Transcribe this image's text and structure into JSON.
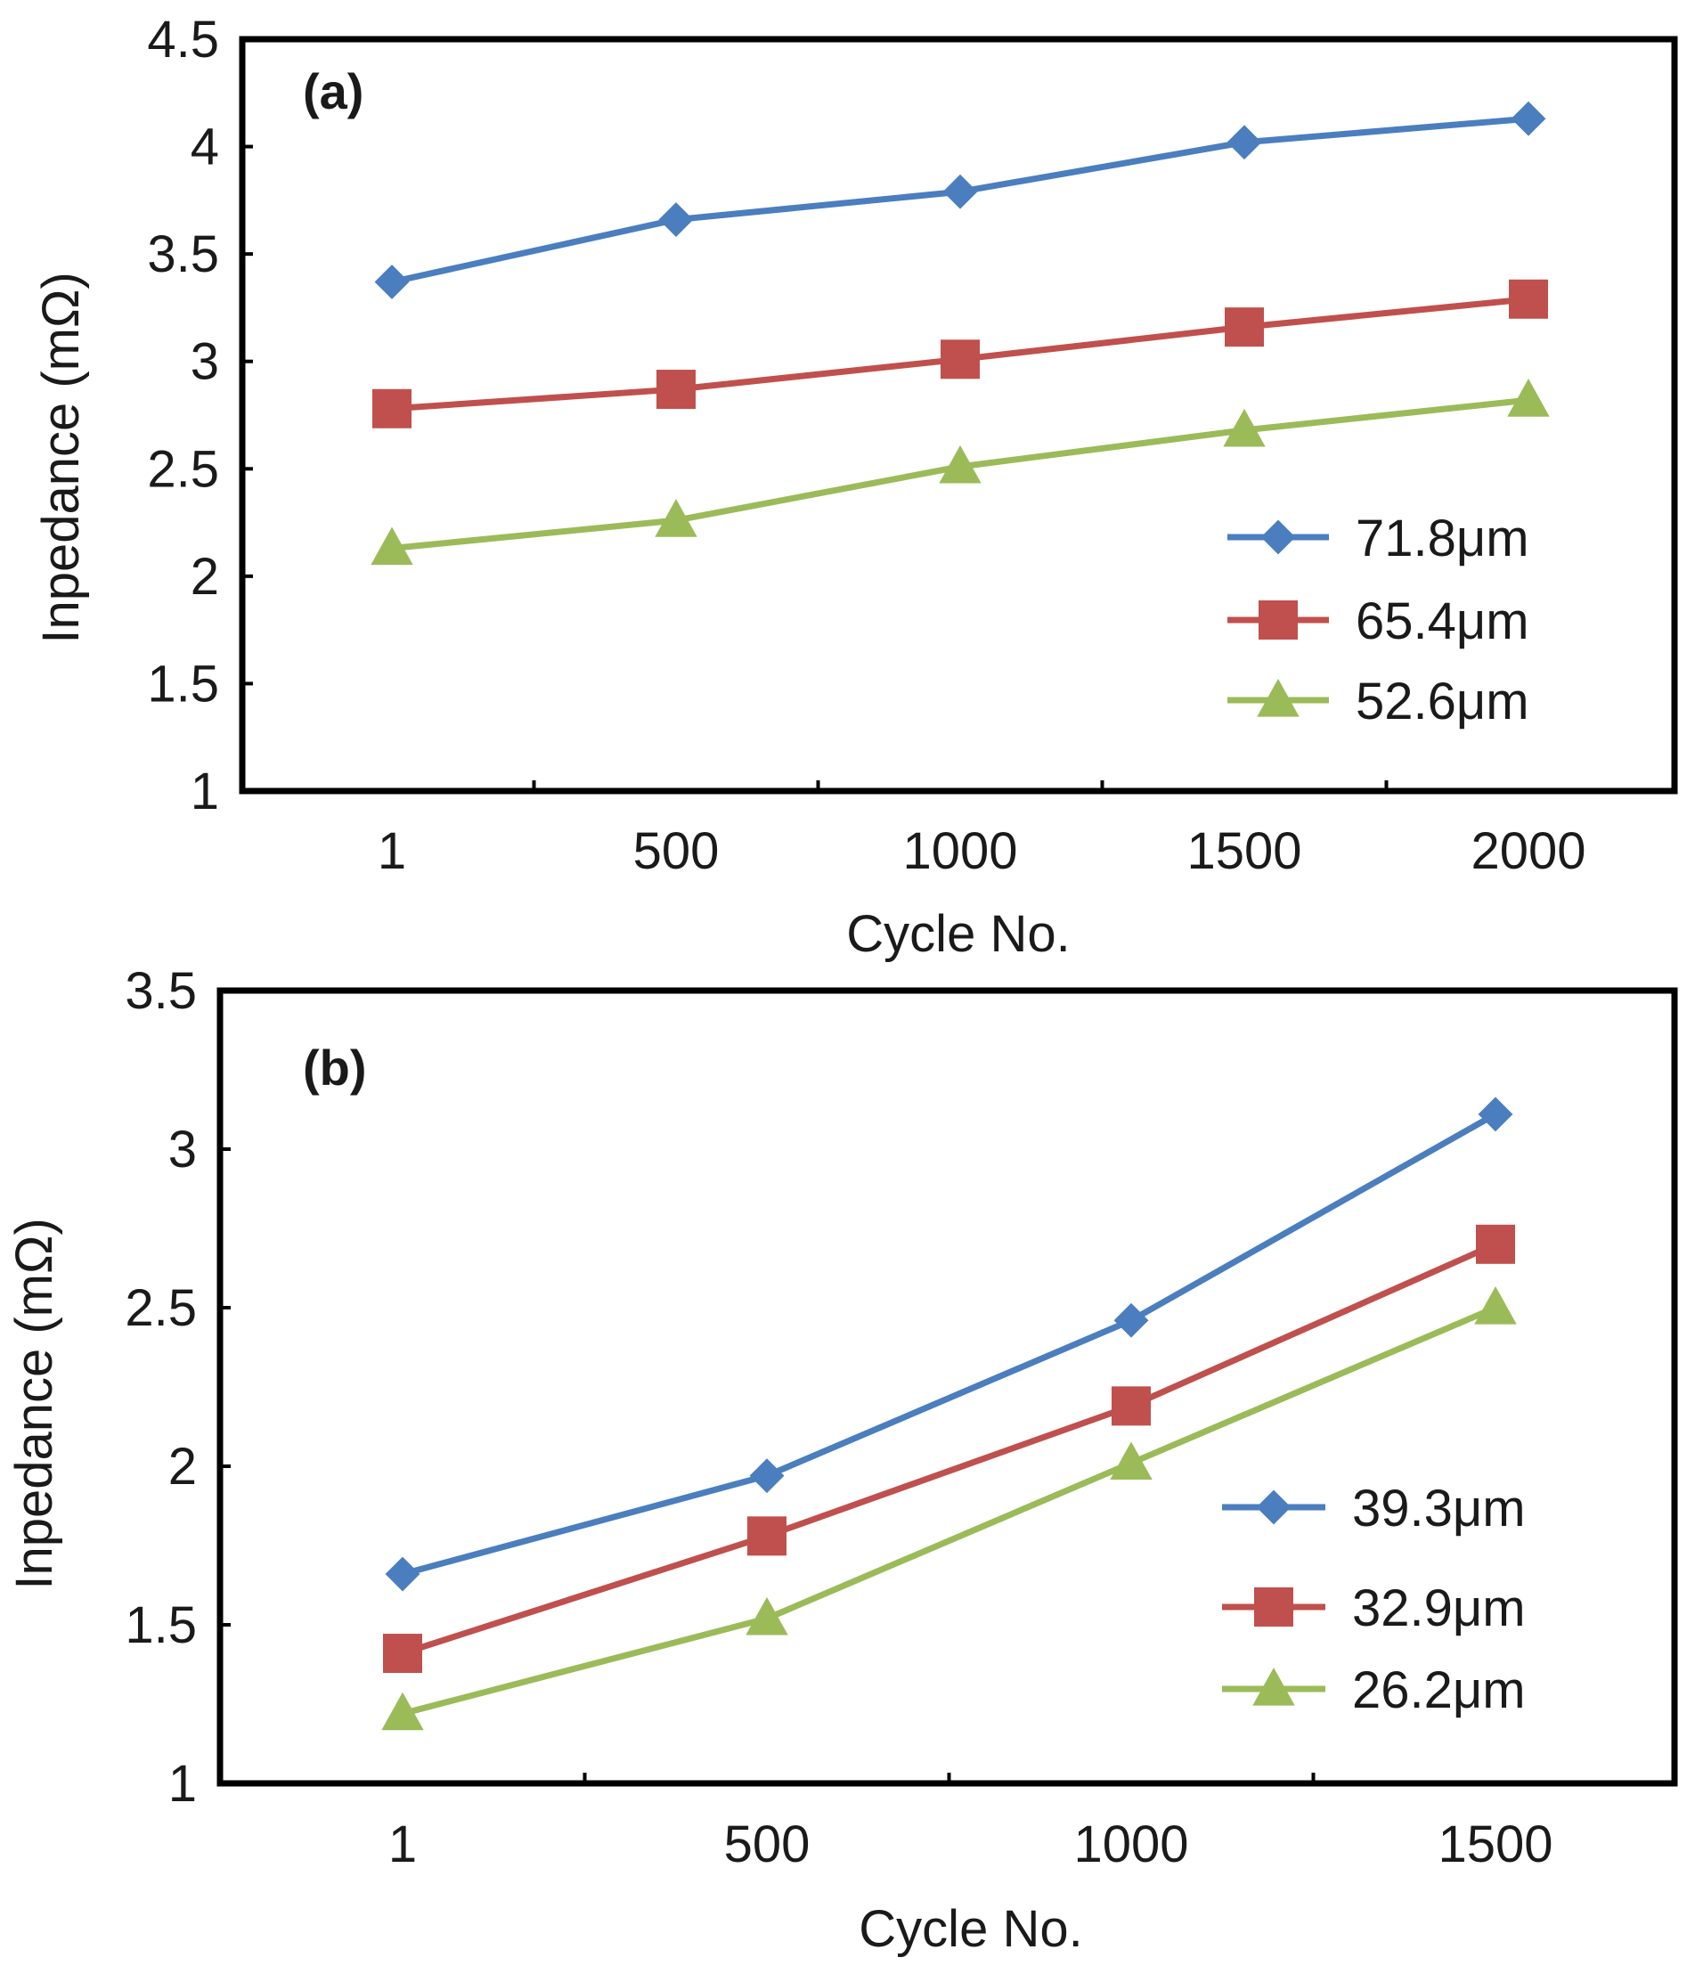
{
  "chart_data": [
    {
      "type": "line",
      "panel_label": "(a)",
      "categories": [
        "1",
        "500",
        "1000",
        "1500",
        "2000"
      ],
      "xlabel": "Cycle No.",
      "ylabel": "Inpedance (mΩ)",
      "ylim": [
        1,
        4.5
      ],
      "yticks": [
        "1",
        "1.5",
        "2",
        "2.5",
        "3",
        "3.5",
        "4",
        "4.5"
      ],
      "grid": false,
      "legend_position": "bottom-right",
      "series": [
        {
          "name": "71.8μm",
          "marker": "diamond",
          "color": "#4a7ebf",
          "values": [
            3.37,
            3.66,
            3.79,
            4.02,
            4.13
          ]
        },
        {
          "name": "65.4μm",
          "marker": "square",
          "color": "#c0504d",
          "values": [
            2.78,
            2.87,
            3.01,
            3.16,
            3.29
          ]
        },
        {
          "name": "52.6μm",
          "marker": "triangle",
          "color": "#9bbb59",
          "values": [
            2.13,
            2.26,
            2.51,
            2.68,
            2.82
          ]
        }
      ]
    },
    {
      "type": "line",
      "panel_label": "(b)",
      "categories": [
        "1",
        "500",
        "1000",
        "1500"
      ],
      "xlabel": "Cycle No.",
      "ylabel": "Inpedance (mΩ)",
      "ylim": [
        1,
        3.5
      ],
      "yticks": [
        "1",
        "1.5",
        "2",
        "2.5",
        "3",
        "3.5"
      ],
      "grid": false,
      "legend_position": "bottom-right",
      "series": [
        {
          "name": "39.3μm",
          "marker": "diamond",
          "color": "#4a7ebf",
          "values": [
            1.66,
            1.97,
            2.46,
            3.11
          ]
        },
        {
          "name": "32.9μm",
          "marker": "square",
          "color": "#c0504d",
          "values": [
            1.41,
            1.78,
            2.19,
            2.7
          ]
        },
        {
          "name": "26.2μm",
          "marker": "triangle",
          "color": "#9bbb59",
          "values": [
            1.22,
            1.52,
            2.01,
            2.5
          ]
        }
      ]
    }
  ]
}
